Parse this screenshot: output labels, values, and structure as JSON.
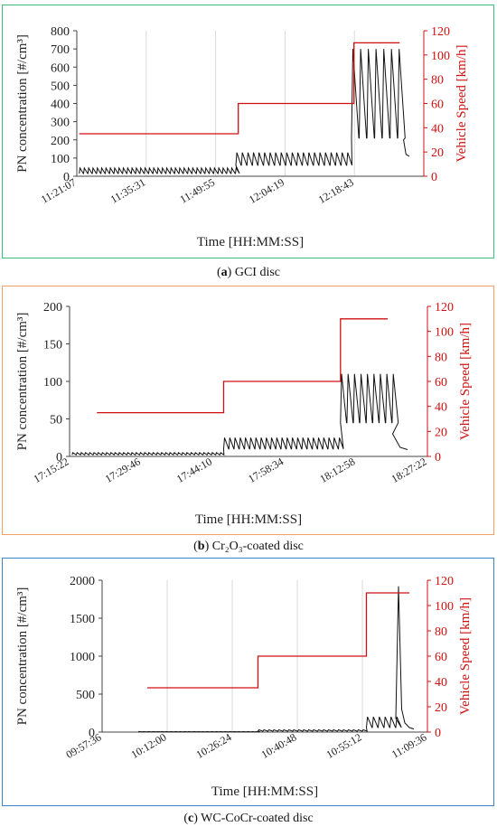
{
  "chart_data": [
    {
      "type": "line",
      "frame_color": "#3cbf7a",
      "caption_letter": "a",
      "caption_text": "GCI disc",
      "xlabel": "Time [HH:MM:SS]",
      "ylabel_left": "PN concentration [#/cm³]",
      "ylabel_right": "Vehicle Speed [km/h]",
      "x_ticks": [
        "11:21:07",
        "11:35:31",
        "11:49:55",
        "12:04:19",
        "12:18:43"
      ],
      "ylim_left": [
        0,
        800
      ],
      "y_ticks_left": [
        0,
        100,
        200,
        300,
        400,
        500,
        600,
        700,
        800
      ],
      "ylim_right": [
        0,
        120
      ],
      "y_ticks_right": [
        0,
        20,
        40,
        60,
        80,
        100,
        120
      ],
      "x_range_min": [
        0,
        72
      ],
      "speed_steps": [
        [
          0.5,
          35
        ],
        [
          33.5,
          35
        ],
        [
          33.5,
          60
        ],
        [
          57.5,
          60
        ],
        [
          57.5,
          110
        ],
        [
          67,
          110
        ]
      ],
      "pn_segments": [
        {
          "start": 0.5,
          "end": 33,
          "period": 0.9,
          "base": 15,
          "peak": 45
        },
        {
          "start": 33,
          "end": 57,
          "period": 1.15,
          "base": 60,
          "peak": 130
        },
        {
          "start": 57,
          "end": 67.8,
          "period": 1.6,
          "base": 210,
          "peak": 700
        }
      ],
      "pn_tail": [
        [
          67.8,
          200
        ],
        [
          68.3,
          120
        ],
        [
          69,
          110
        ]
      ],
      "series": [
        {
          "name": "",
          "color": "#111111"
        },
        {
          "name": "",
          "color": "#d01010"
        }
      ],
      "grid": true
    },
    {
      "type": "line",
      "frame_color": "#f0a064",
      "caption_letter": "b",
      "caption_text": "Cr₂O₃-coated disc",
      "xlabel": "Time [HH:MM:SS]",
      "ylabel_left": "PN concentration [#/cm³]",
      "ylabel_right": "Vehicle Speed [km/h]",
      "x_ticks": [
        "17:15:22",
        "17:29:46",
        "17:44:10",
        "17:58:34",
        "18:12:58",
        "18:27:22"
      ],
      "ylim_left": [
        0,
        200
      ],
      "y_ticks_left": [
        0,
        50,
        100,
        150,
        200
      ],
      "ylim_right": [
        0,
        120
      ],
      "y_ticks_right": [
        0,
        20,
        40,
        60,
        80,
        100,
        120
      ],
      "x_range_min": [
        0,
        72
      ],
      "speed_steps": [
        [
          5.5,
          35
        ],
        [
          31,
          35
        ],
        [
          31,
          60
        ],
        [
          54.5,
          60
        ],
        [
          54.5,
          110
        ],
        [
          64,
          110
        ]
      ],
      "pn_segments": [
        {
          "start": 0.5,
          "end": 31,
          "period": 0.85,
          "base": 2,
          "peak": 5
        },
        {
          "start": 31,
          "end": 54.5,
          "period": 1.05,
          "base": 10,
          "peak": 25
        },
        {
          "start": 54.5,
          "end": 65,
          "period": 1.3,
          "base": 45,
          "peak": 110
        }
      ],
      "pn_tail": [
        [
          65,
          30
        ],
        [
          66.5,
          12
        ],
        [
          68,
          9
        ]
      ],
      "series": [
        {
          "name": "",
          "color": "#111111"
        },
        {
          "name": "",
          "color": "#d01010"
        }
      ],
      "grid": false
    },
    {
      "type": "line",
      "frame_color": "#3a84c8",
      "caption_letter": "c",
      "caption_text": "WC-CoCr-coated disc",
      "xlabel": "Time [HH:MM:SS]",
      "ylabel_left": "PN concentration [#/cm³]",
      "ylabel_right": "Vehicle Speed [km/h]",
      "x_ticks": [
        "09:57:36",
        "10:12:00",
        "10:26:24",
        "10:40:48",
        "10:55:12",
        "11:09:36"
      ],
      "ylim_left": [
        0,
        2000
      ],
      "y_ticks_left": [
        0,
        500,
        1000,
        1500,
        2000
      ],
      "ylim_right": [
        0,
        120
      ],
      "y_ticks_right": [
        0,
        20,
        40,
        60,
        80,
        100,
        120
      ],
      "x_range_min": [
        0,
        72
      ],
      "speed_steps": [
        [
          10,
          35
        ],
        [
          34.5,
          35
        ],
        [
          34.5,
          60
        ],
        [
          58.5,
          60
        ],
        [
          58.5,
          110
        ],
        [
          68,
          110
        ]
      ],
      "pn_segments": [
        {
          "start": 8,
          "end": 34.5,
          "period": 1,
          "base": 3,
          "peak": 6
        },
        {
          "start": 34.5,
          "end": 58.5,
          "period": 1.1,
          "base": 12,
          "peak": 30
        },
        {
          "start": 58.5,
          "end": 65,
          "period": 1.3,
          "base": 60,
          "peak": 200
        }
      ],
      "pn_spike": [
        [
          65,
          180
        ],
        [
          65.6,
          1920
        ],
        [
          66.3,
          300
        ],
        [
          67,
          120
        ],
        [
          68,
          60
        ],
        [
          69,
          40
        ]
      ],
      "series": [
        {
          "name": "",
          "color": "#111111"
        },
        {
          "name": "",
          "color": "#d01010"
        }
      ],
      "grid": true
    }
  ]
}
